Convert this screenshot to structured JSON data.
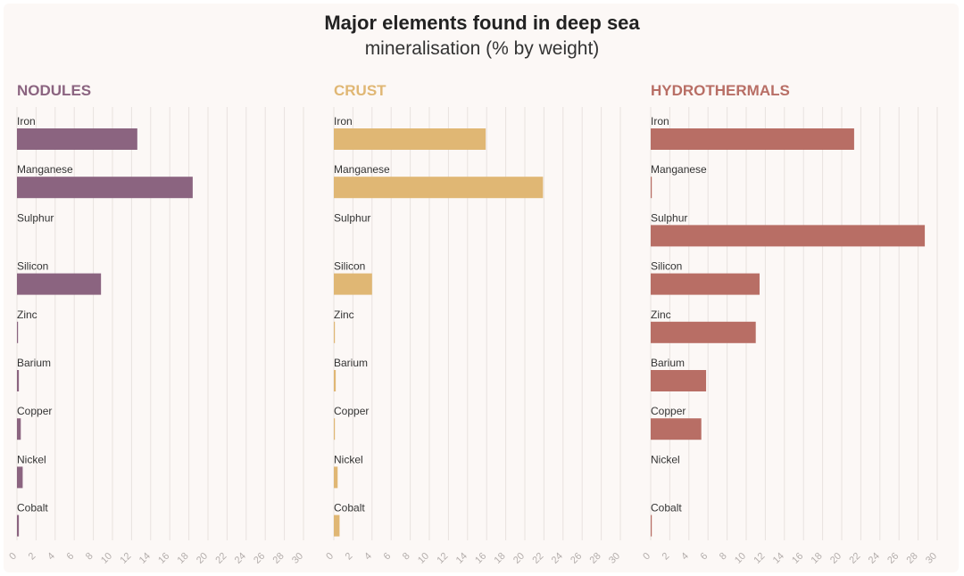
{
  "title": "Major elements found in deep sea",
  "subtitle": "mineralisation (% by weight)",
  "chart_data": [
    {
      "type": "bar",
      "orientation": "horizontal",
      "title": "NODULES",
      "color": "#8b6480",
      "categories": [
        "Iron",
        "Manganese",
        "Sulphur",
        "Silicon",
        "Zinc",
        "Barium",
        "Copper",
        "Nickel",
        "Cobalt"
      ],
      "values": [
        12.6,
        18.4,
        0,
        8.8,
        0.1,
        0.2,
        0.4,
        0.6,
        0.2
      ],
      "xlim": [
        0,
        30
      ],
      "xticks": [
        "0",
        "2",
        "4",
        "6",
        "8",
        "10",
        "12",
        "14",
        "16",
        "18",
        "20",
        "22",
        "24",
        "26",
        "28",
        "30"
      ],
      "grid": true
    },
    {
      "type": "bar",
      "orientation": "horizontal",
      "title": "CRUST",
      "color": "#e0b774",
      "categories": [
        "Iron",
        "Manganese",
        "Sulphur",
        "Silicon",
        "Zinc",
        "Barium",
        "Copper",
        "Nickel",
        "Cobalt"
      ],
      "values": [
        15.9,
        21.9,
        0,
        4.0,
        0.05,
        0.2,
        0.08,
        0.4,
        0.6
      ],
      "xlim": [
        0,
        30
      ],
      "xticks": [
        "0",
        "2",
        "4",
        "6",
        "8",
        "10",
        "12",
        "14",
        "16",
        "18",
        "20",
        "22",
        "24",
        "26",
        "28",
        "30"
      ],
      "grid": true
    },
    {
      "type": "bar",
      "orientation": "horizontal",
      "title": "HYDROTHERMALS",
      "color": "#b86e65",
      "categories": [
        "Iron",
        "Manganese",
        "Sulphur",
        "Silicon",
        "Zinc",
        "Barium",
        "Copper",
        "Nickel",
        "Cobalt"
      ],
      "values": [
        21.3,
        0.1,
        28.7,
        11.4,
        11.0,
        5.8,
        5.3,
        0,
        0.05
      ],
      "xlim": [
        0,
        30
      ],
      "xticks": [
        "0",
        "2",
        "4",
        "6",
        "8",
        "10",
        "12",
        "14",
        "16",
        "18",
        "20",
        "22",
        "24",
        "26",
        "28",
        "30"
      ],
      "grid": true
    }
  ]
}
